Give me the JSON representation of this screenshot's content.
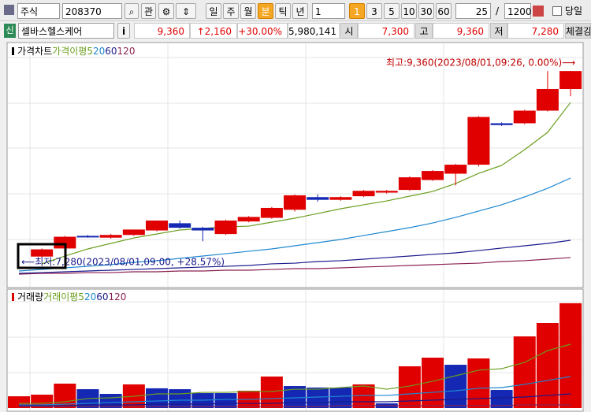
{
  "toolbar": {
    "market": "주식",
    "code": "208370",
    "watch": "관",
    "periods": [
      "일",
      "주",
      "월",
      "분",
      "틱",
      "년"
    ],
    "interval": "1",
    "minutes": [
      "1",
      "3",
      "5",
      "10",
      "30",
      "60"
    ],
    "count": "25",
    "separator": "/",
    "total": "1200",
    "today": "당일"
  },
  "quote": {
    "badge": "신",
    "name": "셀바스헬스케어",
    "info": "i",
    "price": "9,360",
    "change": "↑2,160",
    "rate": "+30.00%",
    "volume": "5,980,141",
    "open_label": "시",
    "open": "7,300",
    "high_label": "고",
    "high": "9,360",
    "low_label": "저",
    "low": "7,280",
    "strength_label": "체결강"
  },
  "chart_data": [
    {
      "type": "candlestick",
      "title": "가격차트",
      "ma_title": "가격이평",
      "up_color": "#e00000",
      "down_color": "#1428b4",
      "high_note": "최고:9,360(2023/08/01,09:26, 0.00%)⟶",
      "low_note": "⟵최저:7,280(2023/08/01,09:00, +28.57%)",
      "ylim": [
        7000,
        9650
      ],
      "open": [
        null,
        7300,
        7390,
        7530,
        7510,
        7540,
        7590,
        7670,
        7620,
        7550,
        7690,
        7730,
        7820,
        7960,
        7930,
        7970,
        8010,
        8040,
        8150,
        8220,
        8320,
        8780,
        8780,
        8920,
        9160
      ],
      "high": [
        null,
        7390,
        7530,
        7540,
        7550,
        7600,
        7700,
        7700,
        7630,
        7710,
        7750,
        7850,
        7990,
        7990,
        7970,
        8040,
        8040,
        8190,
        8260,
        8330,
        8860,
        8790,
        8930,
        9360,
        9360
      ],
      "low": [
        null,
        7280,
        7380,
        7510,
        7500,
        7530,
        7580,
        7610,
        7470,
        7540,
        7680,
        7720,
        7800,
        7910,
        7920,
        7960,
        8000,
        8030,
        8140,
        8090,
        8300,
        8750,
        8770,
        8910,
        9080
      ],
      "close": [
        null,
        7380,
        7520,
        7520,
        7540,
        7600,
        7700,
        7620,
        7590,
        7700,
        7740,
        7840,
        7980,
        7930,
        7960,
        8030,
        8030,
        8180,
        8250,
        8320,
        8850,
        8760,
        8920,
        9160,
        9360
      ],
      "series": [
        {
          "name": "5",
          "color": "#6b9e1e",
          "values": [
            null,
            7219,
            7306,
            7385,
            7446,
            7507,
            7551,
            7595,
            7612,
            7630,
            7638,
            7682,
            7726,
            7778,
            7831,
            7875,
            7918,
            7971,
            8023,
            8111,
            8224,
            8312,
            8487,
            8679,
            9011
          ]
        },
        {
          "name": "20",
          "color": "#1e88d0",
          "values": [
            7140,
            7157,
            7175,
            7192,
            7210,
            7236,
            7254,
            7280,
            7306,
            7332,
            7359,
            7385,
            7420,
            7455,
            7490,
            7534,
            7577,
            7621,
            7673,
            7735,
            7805,
            7875,
            7962,
            8058,
            8172
          ]
        },
        {
          "name": "60",
          "color": "#1a1a8c",
          "values": [
            7114,
            7122,
            7131,
            7140,
            7149,
            7157,
            7166,
            7175,
            7184,
            7192,
            7201,
            7219,
            7227,
            7245,
            7254,
            7271,
            7289,
            7306,
            7324,
            7341,
            7367,
            7394,
            7420,
            7446,
            7481
          ]
        },
        {
          "name": "120",
          "color": "#8b2252",
          "values": [
            7105,
            7114,
            7114,
            7122,
            7122,
            7131,
            7131,
            7140,
            7140,
            7149,
            7149,
            7157,
            7166,
            7166,
            7175,
            7184,
            7192,
            7201,
            7210,
            7219,
            7227,
            7245,
            7254,
            7271,
            7289
          ]
        }
      ]
    },
    {
      "type": "bar",
      "title": "거래량",
      "ma_title": "거래이평",
      "ylim": [
        0,
        840000
      ],
      "values": [
        93000,
        106000,
        193000,
        149000,
        112000,
        187000,
        156000,
        149000,
        118000,
        118000,
        137000,
        249000,
        174000,
        162000,
        162000,
        187000,
        37000,
        330000,
        398000,
        342000,
        392000,
        143000,
        566000,
        672000,
        828000
      ],
      "colors": [
        "#e00000",
        "#e00000",
        "#e00000",
        "#1428b4",
        "#1428b4",
        "#e00000",
        "#1428b4",
        "#1428b4",
        "#1428b4",
        "#1428b4",
        "#e00000",
        "#e00000",
        "#1428b4",
        "#1428b4",
        "#1428b4",
        "#e00000",
        "#1428b4",
        "#e00000",
        "#e00000",
        "#1428b4",
        "#e00000",
        "#1428b4",
        "#e00000",
        "#e00000",
        "#e00000"
      ],
      "series": [
        {
          "name": "5",
          "color": "#6b9e1e",
          "values": [
            37000,
            37000,
            50000,
            75000,
            81000,
            93000,
            112000,
            112000,
            124000,
            124000,
            131000,
            131000,
            149000,
            149000,
            162000,
            174000,
            149000,
            174000,
            212000,
            255000,
            299000,
            311000,
            361000,
            454000,
            504000
          ]
        },
        {
          "name": "20",
          "color": "#1e88d0",
          "values": [
            25000,
            25000,
            31000,
            37000,
            44000,
            50000,
            56000,
            62000,
            62000,
            68000,
            68000,
            75000,
            81000,
            87000,
            93000,
            100000,
            100000,
            112000,
            124000,
            137000,
            156000,
            162000,
            187000,
            218000,
            249000
          ]
        },
        {
          "name": "60",
          "color": "#1a1a8c",
          "values": [
            19000,
            19000,
            19000,
            25000,
            25000,
            25000,
            31000,
            31000,
            31000,
            37000,
            37000,
            37000,
            44000,
            44000,
            50000,
            50000,
            50000,
            56000,
            62000,
            68000,
            75000,
            81000,
            87000,
            100000,
            112000
          ]
        },
        {
          "name": "120",
          "color": "#8b2252",
          "values": [
            12000,
            12000,
            12000,
            12000,
            12000,
            12000,
            12000,
            12000,
            12000,
            12000,
            12000,
            12000,
            12000,
            12000,
            19000,
            19000,
            19000,
            19000,
            19000,
            19000,
            19000,
            19000,
            25000,
            25000,
            25000
          ]
        }
      ]
    }
  ]
}
